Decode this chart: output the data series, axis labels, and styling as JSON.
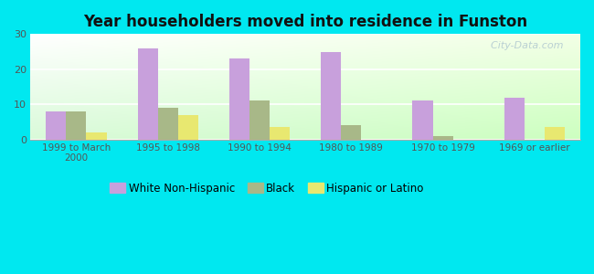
{
  "title": "Year householders moved into residence in Funston",
  "categories": [
    "1999 to March\n2000",
    "1995 to 1998",
    "1990 to 1994",
    "1980 to 1989",
    "1970 to 1979",
    "1969 or earlier"
  ],
  "white_non_hispanic": [
    8,
    26,
    23,
    25,
    11,
    12
  ],
  "black": [
    8,
    9,
    11,
    4,
    1,
    0
  ],
  "hispanic_or_latino": [
    2,
    7,
    3.5,
    0,
    0,
    3.5
  ],
  "white_color": "#c8a0dc",
  "black_color": "#a8b888",
  "hispanic_color": "#e8e870",
  "background_outer": "#00e8f0",
  "ylim": [
    0,
    30
  ],
  "yticks": [
    0,
    10,
    20,
    30
  ],
  "bar_width": 0.22,
  "legend_labels": [
    "White Non-Hispanic",
    "Black",
    "Hispanic or Latino"
  ],
  "watermark": "  City-Data.com"
}
